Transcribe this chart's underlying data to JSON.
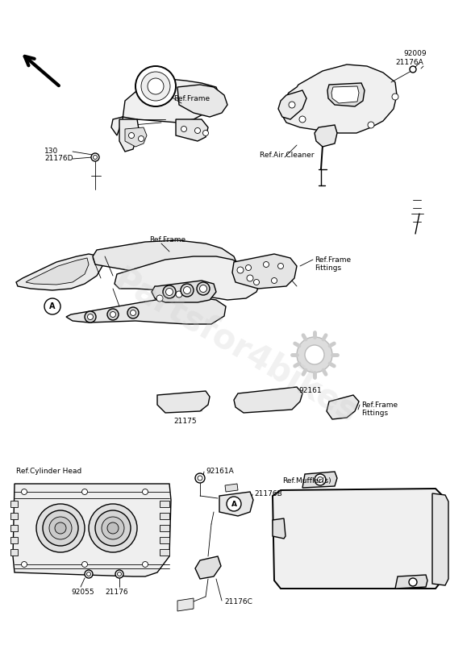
{
  "bg_color": "#ffffff",
  "lc": "#000000",
  "lw_main": 1.0,
  "lw_thin": 0.6,
  "lw_thick": 1.4,
  "fs_ref": 6.5,
  "fs_part": 6.5,
  "watermark_text": "Partsfor4bikes",
  "watermark_color": "#c8c8c8",
  "labels": {
    "ref_frame_top": "Ref.Frame",
    "ref_air_cleaner": "Ref.Air Cleaner",
    "ref_frame_mid": "Ref.Frame",
    "ref_frame_fittings_tr": "Ref.Frame\nFittings",
    "ref_frame_fittings_br": "Ref.Frame\nFittings",
    "ref_cylinder_head": "Ref.Cylinder Head",
    "ref_muffler": "Ref.Muffler(s)",
    "p130": "130",
    "p21176D": "21176D",
    "p92009": "92009",
    "p21176A": "21176A",
    "p92161": "92161",
    "p21175": "21175",
    "p92161A": "92161A",
    "p21176B": "21176B",
    "p21176C": "21176C",
    "p92055": "92055",
    "p21176": "21176"
  }
}
